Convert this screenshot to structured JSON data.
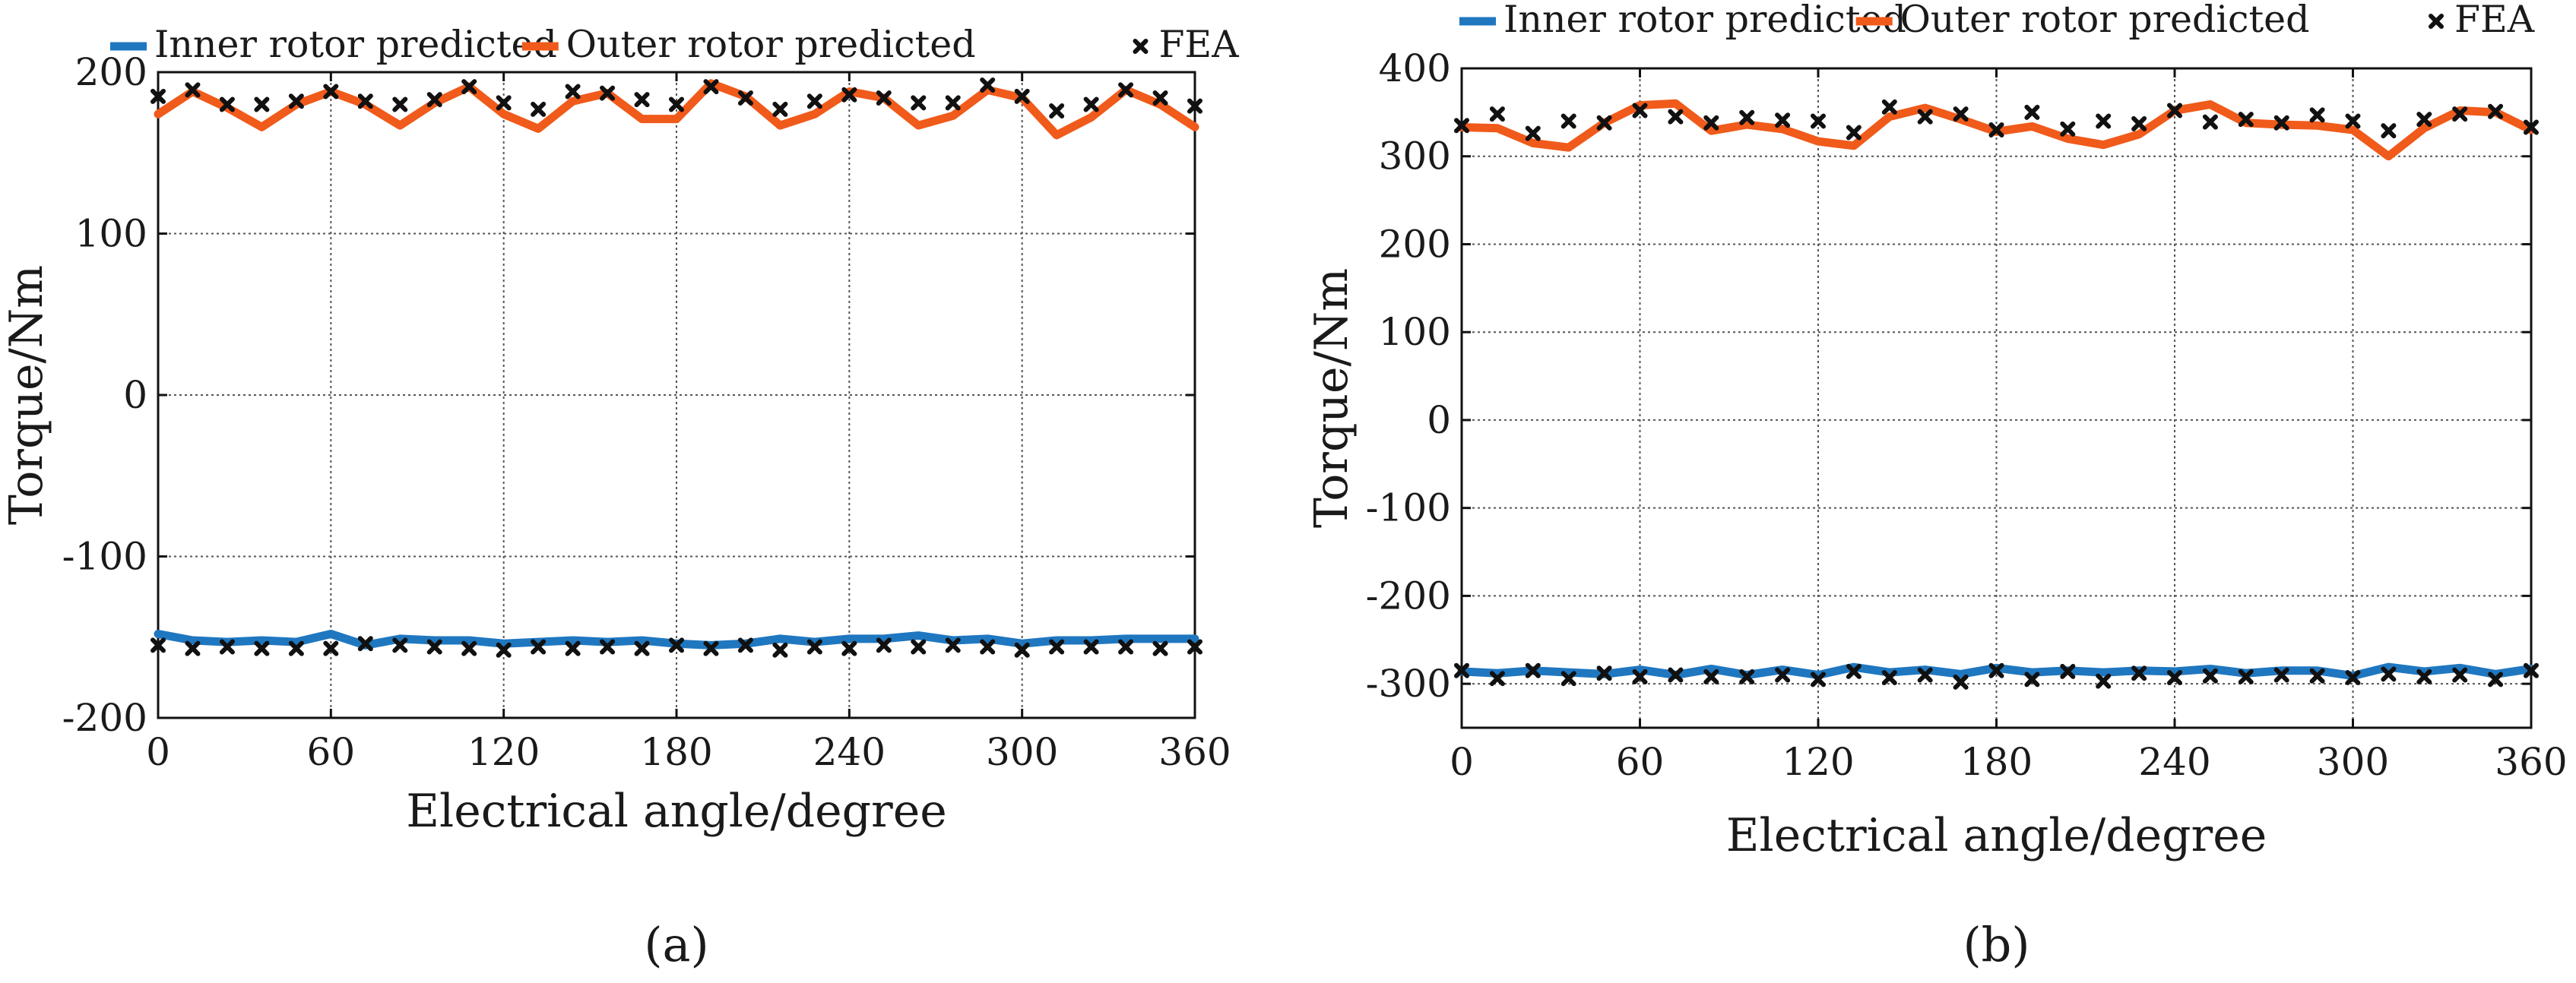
{
  "chart_data": [
    {
      "type": "line",
      "panel": "a",
      "caption": "(a)",
      "title": "",
      "xlabel": "Electrical angle/degree",
      "ylabel": "Torque/Nm",
      "xlim": [
        0,
        360
      ],
      "ylim": [
        -200,
        200
      ],
      "grid": true,
      "legend_position": "top",
      "x_ticks": [
        0,
        60,
        120,
        180,
        240,
        300,
        360
      ],
      "x_tick_labels": [
        "0",
        "60",
        "120",
        "180",
        "240",
        "300",
        "360"
      ],
      "y_ticks": [
        -200,
        -100,
        0,
        100,
        200
      ],
      "y_tick_labels": [
        "-200",
        "-100",
        "0",
        "100",
        "200"
      ],
      "legend": [
        {
          "label": "Inner rotor predicted",
          "style": "line",
          "color": "#1f77c0"
        },
        {
          "label": "Outer rotor predicted",
          "style": "line",
          "color": "#f05a1a"
        },
        {
          "label": "FEA",
          "style": "marker",
          "color": "#111111"
        }
      ],
      "series": [
        {
          "name": "Outer rotor predicted",
          "style": "line",
          "color": "#f05a1a",
          "x": [
            0,
            12,
            24,
            36,
            48,
            60,
            72,
            84,
            96,
            108,
            120,
            132,
            144,
            156,
            168,
            180,
            192,
            204,
            216,
            228,
            240,
            252,
            264,
            276,
            288,
            300,
            312,
            324,
            336,
            348,
            360
          ],
          "y": [
            174,
            188,
            178,
            166,
            180,
            188,
            180,
            167,
            181,
            191,
            174,
            165,
            182,
            187,
            171,
            171,
            193,
            185,
            167,
            174,
            188,
            184,
            167,
            173,
            189,
            184,
            161,
            172,
            189,
            180,
            166
          ]
        },
        {
          "name": "Inner rotor predicted",
          "style": "line",
          "color": "#1f77c0",
          "x": [
            0,
            12,
            24,
            36,
            48,
            60,
            72,
            84,
            96,
            108,
            120,
            132,
            144,
            156,
            168,
            180,
            192,
            204,
            216,
            228,
            240,
            252,
            264,
            276,
            288,
            300,
            312,
            324,
            336,
            348,
            360
          ],
          "y": [
            -148,
            -152,
            -153,
            -152,
            -153,
            -148,
            -155,
            -151,
            -152,
            -152,
            -154,
            -153,
            -152,
            -153,
            -152,
            -154,
            -155,
            -154,
            -151,
            -153,
            -151,
            -151,
            -149,
            -152,
            -151,
            -154,
            -152,
            -152,
            -151,
            -151,
            -151
          ]
        },
        {
          "name": "FEA",
          "style": "marker",
          "color": "#111111",
          "x": [
            0,
            12,
            24,
            36,
            48,
            60,
            72,
            84,
            96,
            108,
            120,
            132,
            144,
            156,
            168,
            180,
            192,
            204,
            216,
            228,
            240,
            252,
            264,
            276,
            288,
            300,
            312,
            324,
            336,
            348,
            360,
            0,
            12,
            24,
            36,
            48,
            60,
            72,
            84,
            96,
            108,
            120,
            132,
            144,
            156,
            168,
            180,
            192,
            204,
            216,
            228,
            240,
            252,
            264,
            276,
            288,
            300,
            312,
            324,
            336,
            348,
            360
          ],
          "y": [
            185,
            189,
            180,
            180,
            182,
            188,
            182,
            180,
            183,
            191,
            181,
            177,
            188,
            187,
            183,
            180,
            191,
            184,
            177,
            182,
            186,
            184,
            181,
            181,
            192,
            185,
            176,
            180,
            189,
            184,
            179,
            -155,
            -157,
            -156,
            -157,
            -157,
            -157,
            -154,
            -155,
            -156,
            -157,
            -158,
            -156,
            -157,
            -156,
            -157,
            -155,
            -157,
            -155,
            -158,
            -156,
            -157,
            -155,
            -156,
            -155,
            -156,
            -158,
            -156,
            -156,
            -156,
            -157,
            -156
          ]
        }
      ]
    },
    {
      "type": "line",
      "panel": "b",
      "caption": "(b)",
      "title": "",
      "xlabel": "Electrical angle/degree",
      "ylabel": "Torque/Nm",
      "xlim": [
        0,
        360
      ],
      "ylim": [
        -350,
        400
      ],
      "grid": true,
      "legend_position": "top",
      "x_ticks": [
        0,
        60,
        120,
        180,
        240,
        300,
        360
      ],
      "x_tick_labels": [
        "0",
        "60",
        "120",
        "180",
        "240",
        "300",
        "360"
      ],
      "y_ticks": [
        -300,
        -200,
        -100,
        0,
        100,
        200,
        300,
        400
      ],
      "y_tick_labels": [
        "-300",
        "-200",
        "-100",
        "0",
        "100",
        "200",
        "300",
        "400"
      ],
      "legend": [
        {
          "label": "Inner rotor predicted",
          "style": "line",
          "color": "#1f77c0"
        },
        {
          "label": "Outer rotor predicted",
          "style": "line",
          "color": "#f05a1a"
        },
        {
          "label": "FEA",
          "style": "marker",
          "color": "#111111"
        }
      ],
      "series": [
        {
          "name": "Outer rotor predicted",
          "style": "line",
          "color": "#f05a1a",
          "x": [
            0,
            12,
            24,
            36,
            48,
            60,
            72,
            84,
            96,
            108,
            120,
            132,
            144,
            156,
            168,
            180,
            192,
            204,
            216,
            228,
            240,
            252,
            264,
            276,
            288,
            300,
            312,
            324,
            336,
            348,
            360
          ],
          "y": [
            333,
            332,
            315,
            310,
            338,
            358,
            360,
            329,
            336,
            331,
            317,
            312,
            345,
            355,
            342,
            328,
            334,
            320,
            313,
            325,
            352,
            359,
            338,
            336,
            335,
            330,
            300,
            332,
            352,
            350,
            330
          ]
        },
        {
          "name": "Inner rotor predicted",
          "style": "line",
          "color": "#1f77c0",
          "x": [
            0,
            12,
            24,
            36,
            48,
            60,
            72,
            84,
            96,
            108,
            120,
            132,
            144,
            156,
            168,
            180,
            192,
            204,
            216,
            228,
            240,
            252,
            264,
            276,
            288,
            300,
            312,
            324,
            336,
            348,
            360
          ],
          "y": [
            -286,
            -288,
            -285,
            -287,
            -289,
            -284,
            -290,
            -283,
            -290,
            -284,
            -290,
            -281,
            -287,
            -284,
            -289,
            -282,
            -287,
            -285,
            -287,
            -285,
            -286,
            -283,
            -288,
            -285,
            -285,
            -291,
            -281,
            -286,
            -282,
            -289,
            -283
          ]
        },
        {
          "name": "FEA",
          "style": "marker",
          "color": "#111111",
          "x": [
            0,
            12,
            24,
            36,
            48,
            60,
            72,
            84,
            96,
            108,
            120,
            132,
            144,
            156,
            168,
            180,
            192,
            204,
            216,
            228,
            240,
            252,
            264,
            276,
            288,
            300,
            312,
            324,
            336,
            348,
            360,
            0,
            12,
            24,
            36,
            48,
            60,
            72,
            84,
            96,
            108,
            120,
            132,
            144,
            156,
            168,
            180,
            192,
            204,
            216,
            228,
            240,
            252,
            264,
            276,
            288,
            300,
            312,
            324,
            336,
            348,
            360
          ],
          "y": [
            335,
            348,
            326,
            340,
            338,
            352,
            345,
            338,
            344,
            341,
            340,
            327,
            356,
            345,
            348,
            330,
            350,
            331,
            340,
            337,
            352,
            339,
            342,
            338,
            347,
            340,
            329,
            342,
            348,
            351,
            333,
            -285,
            -294,
            -285,
            -294,
            -288,
            -292,
            -290,
            -292,
            -292,
            -290,
            -295,
            -286,
            -293,
            -290,
            -298,
            -285,
            -295,
            -286,
            -297,
            -288,
            -293,
            -291,
            -292,
            -290,
            -291,
            -293,
            -289,
            -292,
            -290,
            -295,
            -285
          ]
        }
      ]
    }
  ]
}
